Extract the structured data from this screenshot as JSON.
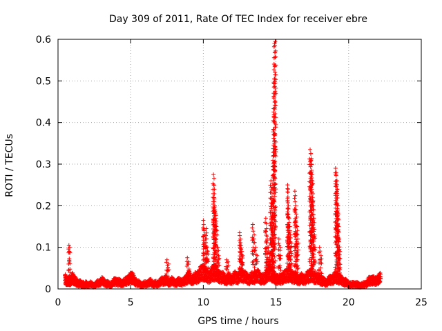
{
  "chart_data": {
    "type": "scatter",
    "title": "Day 309 of 2011, Rate Of TEC Index for receiver ebre",
    "xlabel": "GPS time / hours",
    "ylabel": "ROTI / TECUs",
    "xlim": [
      0,
      25
    ],
    "ylim": [
      0,
      0.6
    ],
    "x_ticks": [
      "0",
      "5",
      "10",
      "15",
      "20",
      "25"
    ],
    "y_ticks": [
      "0",
      "0.1",
      "0.2",
      "0.3",
      "0.4",
      "0.5",
      "0.6"
    ],
    "grid": true,
    "marker": "+",
    "series_color": "#ff0000",
    "series": [
      {
        "baseline": [
          [
            0.5,
            0.035
          ],
          [
            0.6,
            0.02
          ],
          [
            0.7,
            0.03
          ],
          [
            0.8,
            0.02
          ],
          [
            0.9,
            0.03
          ],
          [
            1.0,
            0.035
          ],
          [
            1.1,
            0.03
          ],
          [
            1.2,
            0.025
          ],
          [
            1.3,
            0.02
          ],
          [
            1.4,
            0.015
          ],
          [
            1.5,
            0.02
          ],
          [
            1.6,
            0.012
          ],
          [
            1.7,
            0.015
          ],
          [
            1.8,
            0.01
          ],
          [
            1.9,
            0.015
          ],
          [
            2.0,
            0.012
          ],
          [
            2.2,
            0.015
          ],
          [
            2.4,
            0.01
          ],
          [
            2.6,
            0.012
          ],
          [
            2.8,
            0.02
          ],
          [
            3.0,
            0.025
          ],
          [
            3.2,
            0.02
          ],
          [
            3.4,
            0.015
          ],
          [
            3.6,
            0.012
          ],
          [
            3.8,
            0.02
          ],
          [
            4.0,
            0.025
          ],
          [
            4.2,
            0.02
          ],
          [
            4.4,
            0.018
          ],
          [
            4.6,
            0.022
          ],
          [
            4.8,
            0.03
          ],
          [
            5.0,
            0.035
          ],
          [
            5.1,
            0.04
          ],
          [
            5.2,
            0.03
          ],
          [
            5.4,
            0.02
          ],
          [
            5.6,
            0.015
          ],
          [
            5.8,
            0.012
          ],
          [
            6.0,
            0.015
          ],
          [
            6.2,
            0.018
          ],
          [
            6.4,
            0.02
          ],
          [
            6.6,
            0.015
          ],
          [
            6.8,
            0.015
          ],
          [
            7.0,
            0.02
          ],
          [
            7.2,
            0.025
          ],
          [
            7.4,
            0.03
          ],
          [
            7.6,
            0.02
          ],
          [
            7.8,
            0.025
          ],
          [
            8.0,
            0.02
          ],
          [
            8.2,
            0.02
          ],
          [
            8.4,
            0.025
          ],
          [
            8.6,
            0.02
          ],
          [
            8.8,
            0.03
          ],
          [
            9.0,
            0.04
          ],
          [
            9.2,
            0.03
          ],
          [
            9.4,
            0.035
          ],
          [
            9.6,
            0.04
          ],
          [
            9.8,
            0.05
          ],
          [
            10.0,
            0.06
          ],
          [
            10.2,
            0.045
          ],
          [
            10.4,
            0.04
          ],
          [
            10.6,
            0.05
          ],
          [
            10.8,
            0.06
          ],
          [
            11.0,
            0.045
          ],
          [
            11.2,
            0.04
          ],
          [
            11.4,
            0.035
          ],
          [
            11.6,
            0.03
          ],
          [
            11.8,
            0.035
          ],
          [
            12.0,
            0.03
          ],
          [
            12.2,
            0.04
          ],
          [
            12.4,
            0.035
          ],
          [
            12.6,
            0.05
          ],
          [
            12.8,
            0.04
          ],
          [
            13.0,
            0.035
          ],
          [
            13.2,
            0.03
          ],
          [
            13.4,
            0.04
          ],
          [
            13.6,
            0.035
          ],
          [
            13.8,
            0.045
          ],
          [
            14.0,
            0.03
          ],
          [
            14.2,
            0.035
          ],
          [
            14.4,
            0.05
          ],
          [
            14.6,
            0.06
          ],
          [
            14.8,
            0.04
          ],
          [
            15.0,
            0.035
          ],
          [
            15.2,
            0.03
          ],
          [
            15.4,
            0.035
          ],
          [
            15.6,
            0.04
          ],
          [
            15.8,
            0.05
          ],
          [
            16.0,
            0.045
          ],
          [
            16.2,
            0.04
          ],
          [
            16.4,
            0.035
          ],
          [
            16.6,
            0.03
          ],
          [
            16.8,
            0.035
          ],
          [
            17.0,
            0.03
          ],
          [
            17.2,
            0.04
          ],
          [
            17.4,
            0.05
          ],
          [
            17.6,
            0.04
          ],
          [
            17.8,
            0.035
          ],
          [
            18.0,
            0.03
          ],
          [
            18.2,
            0.025
          ],
          [
            18.4,
            0.02
          ],
          [
            18.6,
            0.025
          ],
          [
            18.8,
            0.03
          ],
          [
            19.0,
            0.035
          ],
          [
            19.2,
            0.04
          ],
          [
            19.4,
            0.03
          ],
          [
            19.6,
            0.025
          ],
          [
            19.8,
            0.02
          ],
          [
            20.0,
            0.015
          ],
          [
            20.2,
            0.012
          ],
          [
            20.4,
            0.015
          ],
          [
            20.6,
            0.012
          ],
          [
            20.8,
            0.01
          ],
          [
            21.0,
            0.012
          ],
          [
            21.2,
            0.015
          ],
          [
            21.4,
            0.025
          ],
          [
            21.6,
            0.03
          ],
          [
            21.8,
            0.025
          ],
          [
            22.0,
            0.03
          ],
          [
            22.2,
            0.035
          ]
        ],
        "spikes": [
          [
            0.5,
            0.035
          ],
          [
            0.75,
            0.105
          ],
          [
            0.8,
            0.1
          ],
          [
            7.5,
            0.07
          ],
          [
            7.6,
            0.06
          ],
          [
            8.9,
            0.075
          ],
          [
            9.0,
            0.065
          ],
          [
            10.0,
            0.165
          ],
          [
            10.05,
            0.14
          ],
          [
            10.15,
            0.12
          ],
          [
            10.2,
            0.145
          ],
          [
            10.25,
            0.1
          ],
          [
            10.3,
            0.09
          ],
          [
            10.7,
            0.275
          ],
          [
            10.72,
            0.25
          ],
          [
            10.75,
            0.21
          ],
          [
            10.8,
            0.19
          ],
          [
            10.82,
            0.185
          ],
          [
            10.85,
            0.17
          ],
          [
            10.9,
            0.15
          ],
          [
            11.0,
            0.1
          ],
          [
            11.05,
            0.08
          ],
          [
            11.6,
            0.07
          ],
          [
            11.7,
            0.065
          ],
          [
            12.5,
            0.135
          ],
          [
            12.55,
            0.12
          ],
          [
            12.6,
            0.105
          ],
          [
            12.65,
            0.09
          ],
          [
            12.7,
            0.08
          ],
          [
            13.4,
            0.155
          ],
          [
            13.5,
            0.13
          ],
          [
            13.6,
            0.1
          ],
          [
            13.7,
            0.08
          ],
          [
            14.3,
            0.17
          ],
          [
            14.35,
            0.145
          ],
          [
            14.4,
            0.12
          ],
          [
            14.5,
            0.1
          ],
          [
            14.6,
            0.085
          ],
          [
            14.65,
            0.26
          ],
          [
            14.7,
            0.24
          ],
          [
            14.72,
            0.2
          ],
          [
            14.75,
            0.16
          ],
          [
            14.78,
            0.13
          ],
          [
            14.8,
            0.1
          ],
          [
            14.82,
            0.32
          ],
          [
            14.85,
            0.415
          ],
          [
            14.88,
            0.505
          ],
          [
            14.9,
            0.59
          ],
          [
            14.95,
            0.595
          ],
          [
            15.2,
            0.12
          ],
          [
            15.3,
            0.1
          ],
          [
            15.8,
            0.25
          ],
          [
            15.82,
            0.24
          ],
          [
            15.85,
            0.2
          ],
          [
            15.9,
            0.17
          ],
          [
            15.95,
            0.15
          ],
          [
            16.0,
            0.13
          ],
          [
            16.05,
            0.11
          ],
          [
            16.3,
            0.235
          ],
          [
            16.35,
            0.2
          ],
          [
            16.4,
            0.18
          ],
          [
            16.45,
            0.15
          ],
          [
            16.5,
            0.12
          ],
          [
            17.35,
            0.335
          ],
          [
            17.4,
            0.325
          ],
          [
            17.42,
            0.31
          ],
          [
            17.45,
            0.285
          ],
          [
            17.5,
            0.26
          ],
          [
            17.52,
            0.22
          ],
          [
            17.55,
            0.2
          ],
          [
            17.6,
            0.17
          ],
          [
            17.65,
            0.13
          ],
          [
            18.0,
            0.1
          ],
          [
            18.1,
            0.08
          ],
          [
            19.1,
            0.29
          ],
          [
            19.15,
            0.28
          ],
          [
            19.2,
            0.26
          ],
          [
            19.22,
            0.24
          ],
          [
            19.25,
            0.2
          ],
          [
            19.28,
            0.18
          ],
          [
            19.3,
            0.15
          ],
          [
            19.35,
            0.12
          ],
          [
            19.4,
            0.09
          ],
          [
            22.2,
            0.035
          ]
        ]
      }
    ]
  }
}
